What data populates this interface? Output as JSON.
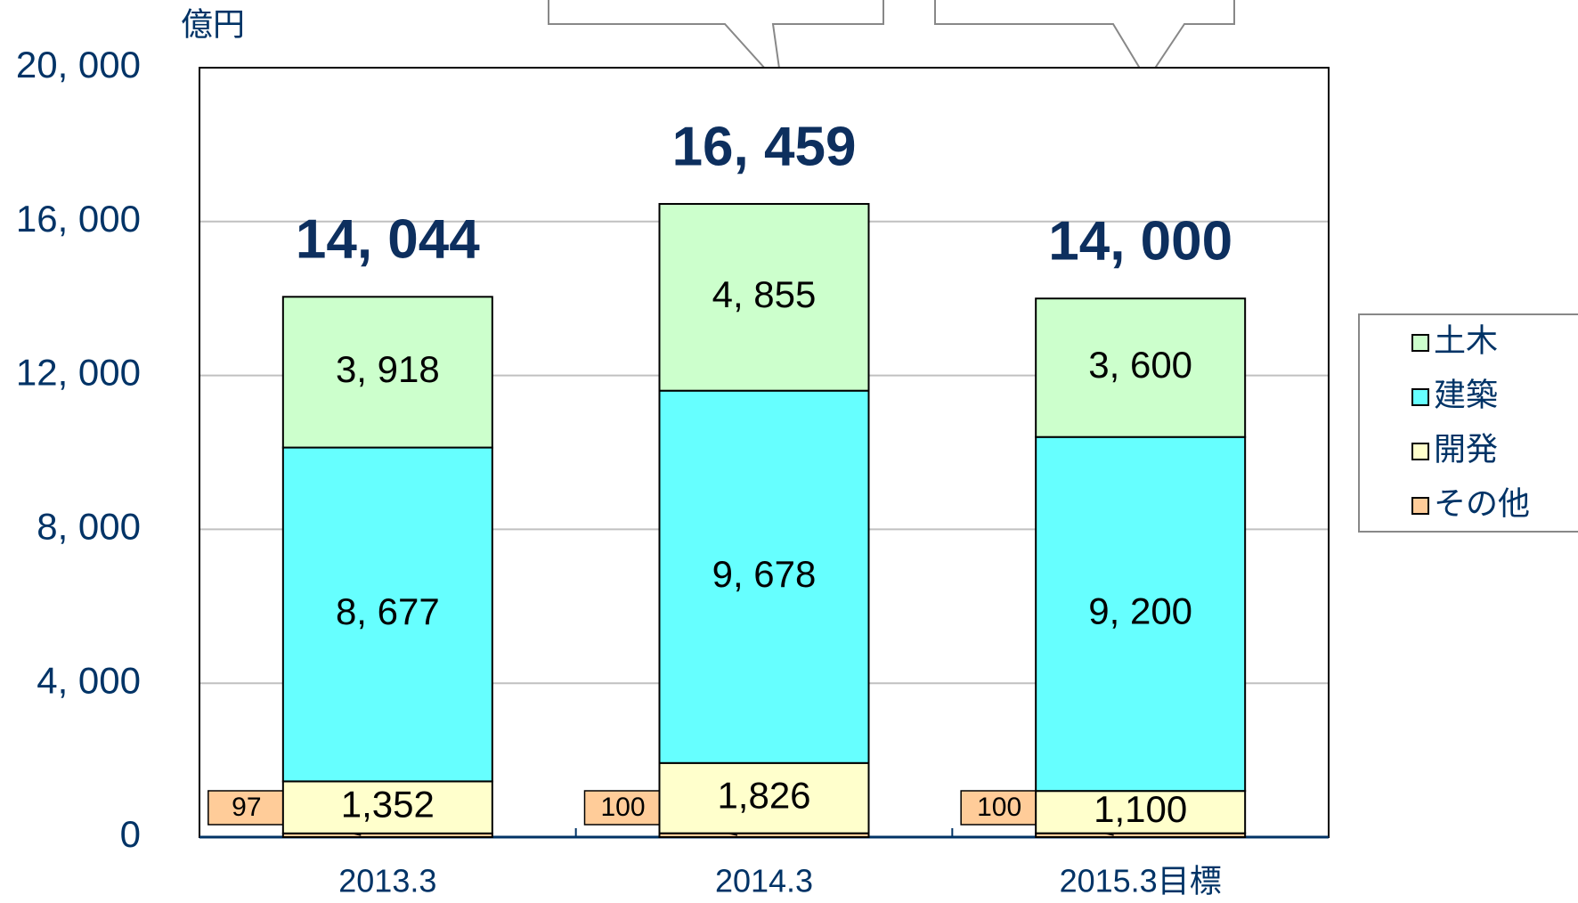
{
  "chart_data": {
    "type": "stacked_bar",
    "unit_label": "億円",
    "categories": [
      "2013.3",
      "2014.3",
      "2015.3目標"
    ],
    "series": [
      {
        "name": "その他",
        "color": "#ffcc99",
        "values": [
          97,
          100,
          100
        ]
      },
      {
        "name": "開発",
        "color": "#ffffcc",
        "values": [
          1352,
          1826,
          1100
        ],
        "value_labels": [
          "1,352",
          "1,826",
          "1,100"
        ]
      },
      {
        "name": "建築",
        "color": "#66ffff",
        "values": [
          8677,
          9678,
          9200
        ],
        "value_labels": [
          "8, 677",
          "9, 678",
          "9, 200"
        ]
      },
      {
        "name": "土木",
        "color": "#ccffcc",
        "values": [
          3918,
          4855,
          3600
        ],
        "value_labels": [
          "3, 918",
          "4, 855",
          "3, 600"
        ]
      }
    ],
    "totals": [
      14044,
      16459,
      14000
    ],
    "total_labels": [
      "14, 044",
      "16, 459",
      "14, 000"
    ],
    "ylim": [
      0,
      20000
    ],
    "yticks": [
      0,
      {
        "value": 4000,
        "label": "4, 000"
      },
      {
        "value": 8000,
        "label": "8, 000"
      },
      {
        "value": 12000,
        "label": "12, 000"
      },
      {
        "value": 16000,
        "label": "16, 000"
      },
      {
        "value": 20000,
        "label": "20, 000"
      }
    ],
    "grid": true,
    "legend": "right"
  }
}
